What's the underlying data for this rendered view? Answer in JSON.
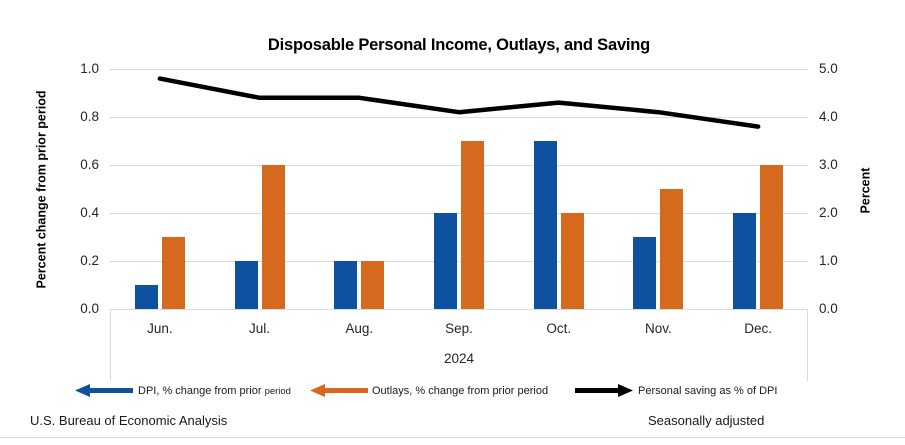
{
  "title": "Disposable Personal Income, Outlays, and Saving",
  "colors": {
    "dpi_blue": "#0E519E",
    "outlays_orange": "#D5691D",
    "saving_black": "#000000",
    "gridline_gray": "#DBDBDB"
  },
  "left_axis": {
    "label": "Percent change from prior period",
    "ticks": [
      "0.0",
      "0.2",
      "0.4",
      "0.6",
      "0.8",
      "1.0"
    ]
  },
  "right_axis": {
    "label": "Percent",
    "ticks": [
      "0.0",
      "1.0",
      "2.0",
      "3.0",
      "4.0",
      "5.0"
    ]
  },
  "x_axis": {
    "categories": [
      "Jun.",
      "Jul.",
      "Aug.",
      "Sep.",
      "Oct.",
      "Nov.",
      "Dec."
    ],
    "year": "2024"
  },
  "legend": {
    "dpi": {
      "label_main": "DPI, % change from prior ",
      "label_small": "period"
    },
    "outlays": {
      "label": "Outlays, % change from prior period"
    },
    "saving": {
      "label": "Personal saving as % of DPI"
    }
  },
  "footer": {
    "source": "U.S. Bureau of Economic Analysis",
    "note": "Seasonally adjusted"
  },
  "chart_data": {
    "type": "combo-bar-line",
    "categories": [
      "Jun.",
      "Jul.",
      "Aug.",
      "Sep.",
      "Oct.",
      "Nov.",
      "Dec."
    ],
    "x_group_label": "2024",
    "series": [
      {
        "name": "DPI, % change from prior period",
        "type": "bar",
        "axis": "left",
        "color": "#0E519E",
        "values": [
          0.1,
          0.2,
          0.2,
          0.4,
          0.7,
          0.3,
          0.4
        ]
      },
      {
        "name": "Outlays, % change from prior period",
        "type": "bar",
        "axis": "left",
        "color": "#D5691D",
        "values": [
          0.3,
          0.6,
          0.2,
          0.7,
          0.4,
          0.5,
          0.6
        ]
      },
      {
        "name": "Personal saving as % of DPI",
        "type": "line",
        "axis": "right",
        "color": "#000000",
        "values": [
          4.8,
          4.4,
          4.4,
          4.1,
          4.3,
          4.1,
          3.8
        ]
      }
    ],
    "title": "Disposable Personal Income, Outlays, and Saving",
    "ylabel_left": "Percent change from prior period",
    "ylabel_right": "Percent",
    "ylim_left": [
      0.0,
      1.0
    ],
    "ylim_right": [
      0.0,
      5.0
    ],
    "grid": true,
    "legend_position": "bottom"
  }
}
